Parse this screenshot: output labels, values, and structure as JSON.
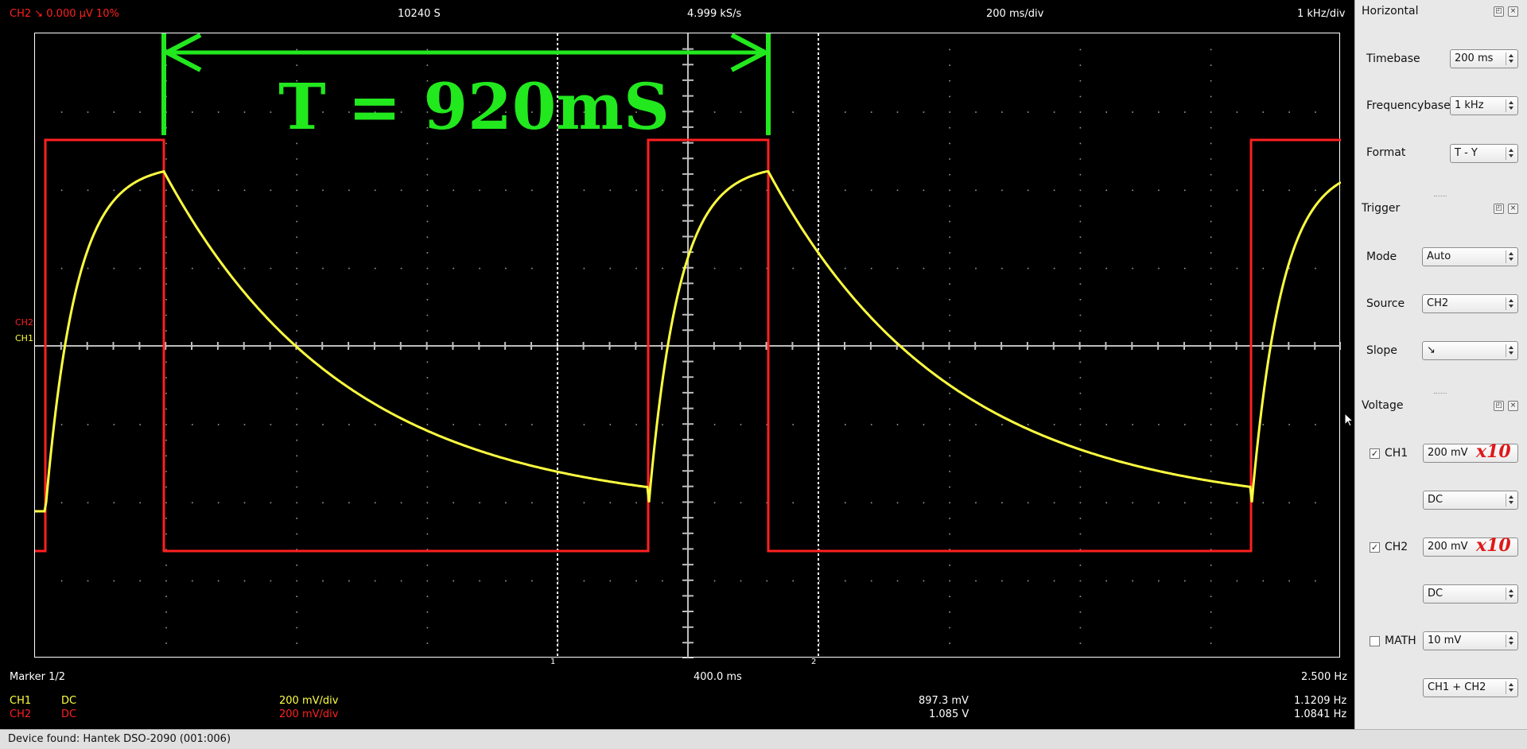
{
  "top_info": {
    "trigger": "CH2  ↘  0.000 µV  10%",
    "samples": "10240 S",
    "samplerate": "4.999 kS/s",
    "timebase": "200 ms/div",
    "freqbase": "1 kHz/div"
  },
  "screen": {
    "ch2_marker": "CH2",
    "ch1_marker": "CH1",
    "annotation": "T = 920mS",
    "marker1": "1",
    "marker2": "2"
  },
  "bottom_info": {
    "marker": "Marker 1/2",
    "time": "400.0 ms",
    "freq": "2.500 Hz",
    "ch1": {
      "name": "CH1",
      "coupling": "DC",
      "volts": "200 mV/div",
      "amp": "897.3 mV",
      "freq": "1.1209 Hz"
    },
    "ch2": {
      "name": "CH2",
      "coupling": "DC",
      "volts": "200 mV/div",
      "amp": "1.085 V",
      "freq": "1.0841 Hz"
    }
  },
  "horizontal": {
    "title": "Horizontal",
    "timebase_label": "Timebase",
    "timebase_value": "200 ms",
    "freqbase_label": "Frequencybase",
    "freqbase_value": "1 kHz",
    "format_label": "Format",
    "format_value": "T - Y"
  },
  "trigger": {
    "title": "Trigger",
    "mode_label": "Mode",
    "mode_value": "Auto",
    "source_label": "Source",
    "source_value": "CH2",
    "slope_label": "Slope",
    "slope_value": "↘"
  },
  "voltage": {
    "title": "Voltage",
    "ch1_label": "CH1",
    "ch1_gain": "200 mV",
    "ch1_coupling": "DC",
    "ch2_label": "CH2",
    "ch2_gain": "200 mV",
    "ch2_coupling": "DC",
    "math_label": "MATH",
    "math_gain": "10 mV",
    "math_mode": "CH1 + CH2",
    "probe_note": "x10"
  },
  "status": "Device found: Hantek DSO-2090 (001:006)",
  "colors": {
    "ch1": "#ffff40",
    "ch2": "#ff2020",
    "annotation": "#22e81e"
  },
  "icons": {
    "float": "float-icon",
    "close": "close-icon",
    "checked": "checkbox-checked-icon",
    "cursor": "mouse-pointer-icon"
  }
}
